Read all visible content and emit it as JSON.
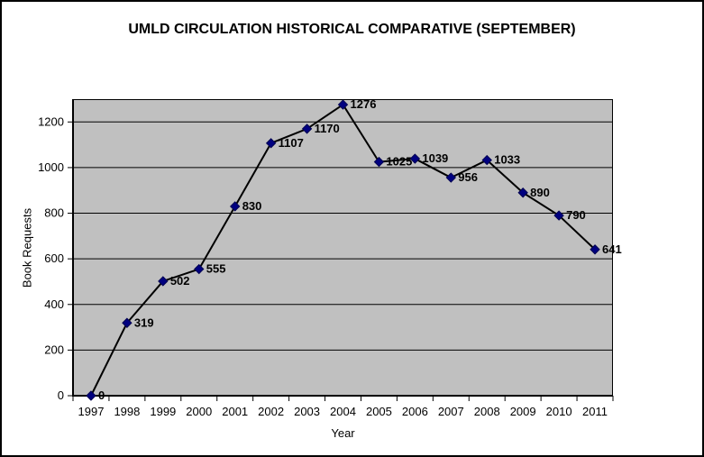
{
  "chart_data": {
    "type": "line",
    "title": "UMLD CIRCULATION HISTORICAL COMPARATIVE (SEPTEMBER)",
    "xlabel": "Year",
    "ylabel": "Book Requests",
    "categories": [
      "1997",
      "1998",
      "1999",
      "2000",
      "2001",
      "2002",
      "2003",
      "2004",
      "2005",
      "2006",
      "2007",
      "2008",
      "2009",
      "2010",
      "2011"
    ],
    "values": [
      0,
      319,
      502,
      555,
      830,
      1107,
      1170,
      1276,
      1025,
      1039,
      956,
      1033,
      890,
      790,
      641
    ],
    "data_labels": [
      "0",
      "319",
      "502",
      "555",
      "830",
      "1107",
      "1170",
      "1276",
      "1025",
      "1039",
      "956",
      "1033",
      "890",
      "790",
      "641"
    ],
    "yticks": [
      0,
      200,
      400,
      600,
      800,
      1000,
      1200
    ],
    "ylim": [
      0,
      1300
    ],
    "grid": true,
    "legend": "none",
    "marker": "diamond",
    "colors": {
      "background": "#ffffff",
      "frame_border": "#000000",
      "plot_bg": "#c0c0c0",
      "gridline": "#000000",
      "axis": "#000000",
      "series_line": "#000000",
      "marker_fill": "#000080",
      "marker_stroke": "#000050",
      "text": "#000000"
    }
  }
}
